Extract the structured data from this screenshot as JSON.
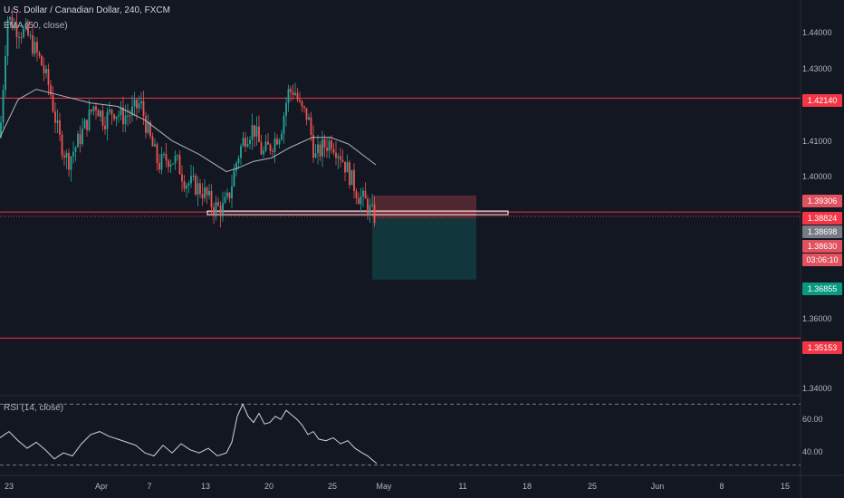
{
  "header": {
    "symbol_title": "U.S. Dollar / Canadian Dollar, 240, FXCM",
    "ema_label": "EMA (50, close)"
  },
  "rsi": {
    "label": "RSI (14, close)",
    "ticks": [
      "60.00",
      "40.00"
    ]
  },
  "price_axis": {
    "ticks": [
      "1.44000",
      "1.43000",
      "1.41000",
      "1.40000",
      "1.36000",
      "1.34000"
    ]
  },
  "price_tags": [
    {
      "value": "1.42140",
      "color": "#f23645"
    },
    {
      "value": "1.39306",
      "color": "#e05260"
    },
    {
      "value": "1.38824",
      "color": "#f23645"
    },
    {
      "value": "1.38698",
      "color": "#787b86"
    },
    {
      "value": "1.38630",
      "color": "#e05260"
    },
    {
      "value": "03:06:10",
      "color": "#e05260"
    },
    {
      "value": "1.36855",
      "color": "#089981"
    },
    {
      "value": "1.35153",
      "color": "#f23645"
    }
  ],
  "date_axis": [
    "23",
    "Apr",
    "7",
    "13",
    "20",
    "25",
    "May",
    "11",
    "18",
    "25",
    "Jun",
    "8",
    "15"
  ],
  "colors": {
    "background": "#131722",
    "bull": "#26a69a",
    "bear": "#ef5350",
    "level_line": "#f23645",
    "ema": "#b2b5be",
    "short_stop_zone": "#5b2c34",
    "short_target_zone": "#123c40"
  },
  "chart_data": {
    "type": "candlestick",
    "title": "U.S. Dollar / Canadian Dollar, 240, FXCM",
    "ylim": [
      1.335,
      1.45
    ],
    "horizontal_levels": [
      1.4214,
      1.38824,
      1.35153
    ],
    "current_price": 1.38698,
    "position": {
      "side": "short",
      "entry": 1.3863,
      "stop": 1.39306,
      "target": 1.36855
    },
    "support_box": {
      "from": "Apr 13",
      "to": "May 12",
      "price": 1.388
    },
    "close_path": [
      [
        0,
        1.41
      ],
      [
        8,
        1.445
      ],
      [
        18,
        1.442
      ],
      [
        30,
        1.44
      ],
      [
        45,
        1.432
      ],
      [
        55,
        1.424
      ],
      [
        65,
        1.41
      ],
      [
        75,
        1.403
      ],
      [
        85,
        1.408
      ],
      [
        95,
        1.414
      ],
      [
        105,
        1.42
      ],
      [
        115,
        1.415
      ],
      [
        125,
        1.418
      ],
      [
        135,
        1.416
      ],
      [
        145,
        1.417
      ],
      [
        155,
        1.42
      ],
      [
        165,
        1.41
      ],
      [
        175,
        1.402
      ],
      [
        185,
        1.404
      ],
      [
        195,
        1.403
      ],
      [
        205,
        1.397
      ],
      [
        215,
        1.396
      ],
      [
        225,
        1.394
      ],
      [
        235,
        1.39
      ],
      [
        245,
        1.389
      ],
      [
        252,
        1.392
      ],
      [
        258,
        1.399
      ],
      [
        262,
        1.404
      ],
      [
        270,
        1.41
      ],
      [
        280,
        1.413
      ],
      [
        290,
        1.405
      ],
      [
        300,
        1.408
      ],
      [
        310,
        1.412
      ],
      [
        318,
        1.423
      ],
      [
        325,
        1.424
      ],
      [
        332,
        1.418
      ],
      [
        340,
        1.416
      ],
      [
        348,
        1.404
      ],
      [
        356,
        1.407
      ],
      [
        366,
        1.409
      ],
      [
        376,
        1.405
      ],
      [
        386,
        1.399
      ],
      [
        396,
        1.393
      ],
      [
        404,
        1.391
      ],
      [
        410,
        1.388
      ],
      [
        415,
        1.3865
      ]
    ],
    "ema_path": [
      [
        0,
        1.41
      ],
      [
        20,
        1.421
      ],
      [
        40,
        1.424
      ],
      [
        70,
        1.422
      ],
      [
        100,
        1.42
      ],
      [
        130,
        1.419
      ],
      [
        160,
        1.415
      ],
      [
        190,
        1.409
      ],
      [
        220,
        1.405
      ],
      [
        250,
        1.4
      ],
      [
        262,
        1.401
      ],
      [
        280,
        1.403
      ],
      [
        300,
        1.404
      ],
      [
        320,
        1.407
      ],
      [
        345,
        1.41
      ],
      [
        365,
        1.41
      ],
      [
        385,
        1.408
      ],
      [
        400,
        1.405
      ],
      [
        415,
        1.402
      ]
    ],
    "rsi_range": [
      25,
      75
    ],
    "rsi_path": [
      [
        0,
        48
      ],
      [
        10,
        52
      ],
      [
        20,
        46
      ],
      [
        30,
        41
      ],
      [
        40,
        45
      ],
      [
        50,
        40
      ],
      [
        60,
        34
      ],
      [
        70,
        38
      ],
      [
        80,
        36
      ],
      [
        90,
        44
      ],
      [
        100,
        50
      ],
      [
        110,
        52
      ],
      [
        120,
        49
      ],
      [
        130,
        47
      ],
      [
        140,
        45
      ],
      [
        150,
        43
      ],
      [
        160,
        38
      ],
      [
        170,
        36
      ],
      [
        180,
        43
      ],
      [
        190,
        38
      ],
      [
        200,
        44
      ],
      [
        210,
        40
      ],
      [
        220,
        38
      ],
      [
        230,
        41
      ],
      [
        240,
        36
      ],
      [
        250,
        38
      ],
      [
        256,
        45
      ],
      [
        262,
        62
      ],
      [
        268,
        70
      ],
      [
        274,
        62
      ],
      [
        280,
        58
      ],
      [
        286,
        64
      ],
      [
        292,
        57
      ],
      [
        298,
        58
      ],
      [
        304,
        62
      ],
      [
        310,
        60
      ],
      [
        316,
        66
      ],
      [
        322,
        63
      ],
      [
        328,
        60
      ],
      [
        334,
        56
      ],
      [
        340,
        50
      ],
      [
        346,
        52
      ],
      [
        352,
        47
      ],
      [
        360,
        46
      ],
      [
        368,
        48
      ],
      [
        376,
        44
      ],
      [
        384,
        46
      ],
      [
        392,
        41
      ],
      [
        400,
        38
      ],
      [
        406,
        36
      ],
      [
        412,
        33
      ],
      [
        416,
        31
      ]
    ]
  }
}
